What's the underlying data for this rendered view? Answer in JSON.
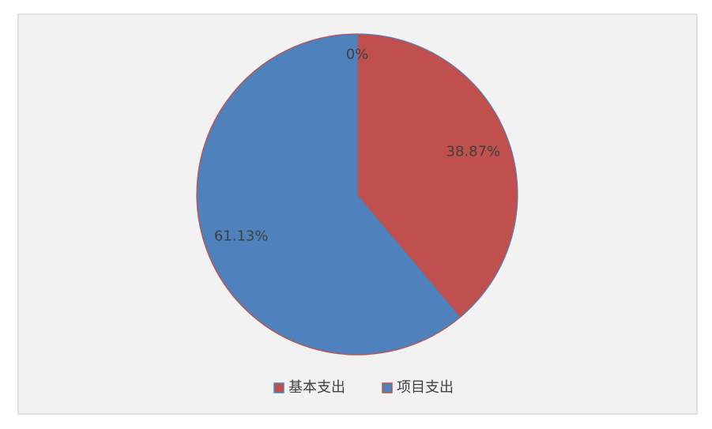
{
  "chart_data": {
    "type": "pie",
    "categories": [
      "基本支出",
      "项目支出",
      null
    ],
    "values": [
      38.87,
      61.13,
      0
    ],
    "value_labels": [
      "38.87%",
      "61.13%",
      "0%"
    ],
    "colors": [
      "#c0504d",
      "#4f81bd",
      "#9bbb59"
    ],
    "edge_colors": [
      "#4f81bd",
      "#c0504d",
      "#4f81bd"
    ],
    "legend": "bottom"
  }
}
